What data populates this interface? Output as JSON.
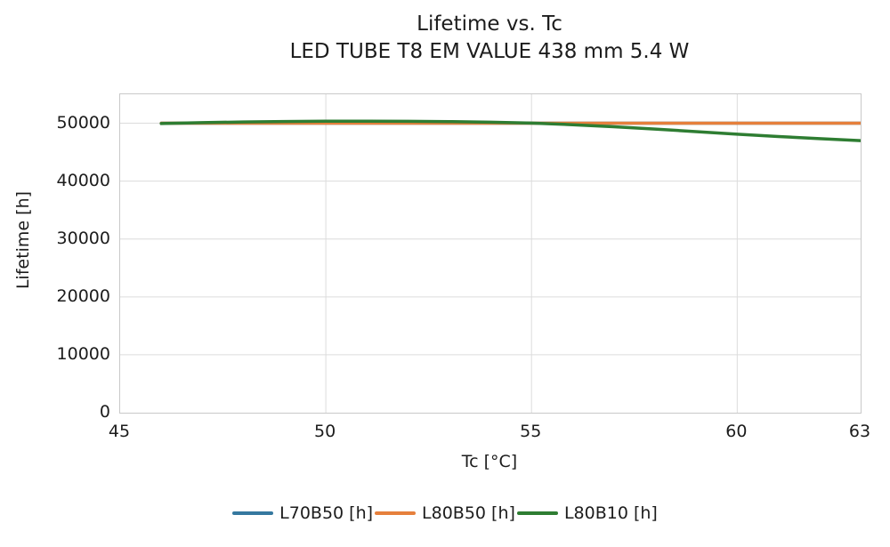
{
  "title": {
    "line1": "Lifetime vs. Tc",
    "line2": "LED TUBE T8 EM VALUE 438 mm 5.4 W"
  },
  "chart_data": {
    "type": "line",
    "title": "Lifetime vs. Tc",
    "subtitle": "LED TUBE T8 EM VALUE 438 mm 5.4 W",
    "xlabel": "Tc [°C]",
    "ylabel": "Lifetime [h]",
    "xlim": [
      45,
      63
    ],
    "ylim": [
      0,
      55000
    ],
    "x_ticks": [
      45,
      50,
      55,
      60,
      63
    ],
    "y_ticks": [
      0,
      10000,
      20000,
      30000,
      40000,
      50000
    ],
    "grid": true,
    "legend_position": "bottom",
    "series": [
      {
        "name": "L70B50 [h]",
        "color": "#35789f",
        "points": [
          [
            46,
            50000
          ],
          [
            63,
            50000
          ]
        ]
      },
      {
        "name": "L80B50 [h]",
        "color": "#e6803c",
        "points": [
          [
            46,
            50000
          ],
          [
            63,
            50000
          ]
        ]
      },
      {
        "name": "L80B10 [h]",
        "color": "#2e7d32",
        "points": [
          [
            46,
            49950
          ],
          [
            47,
            50100
          ],
          [
            48,
            50220
          ],
          [
            49,
            50300
          ],
          [
            50,
            50340
          ],
          [
            51,
            50350
          ],
          [
            52,
            50330
          ],
          [
            53,
            50280
          ],
          [
            54,
            50180
          ],
          [
            55,
            50020
          ],
          [
            56,
            49750
          ],
          [
            57,
            49400
          ],
          [
            58,
            49000
          ],
          [
            59,
            48550
          ],
          [
            60,
            48100
          ],
          [
            61,
            47700
          ],
          [
            62,
            47330
          ],
          [
            63,
            47000
          ]
        ]
      }
    ]
  },
  "style": {
    "grid_color": "#dcdcdc",
    "text_color": "#1c1c1c"
  }
}
